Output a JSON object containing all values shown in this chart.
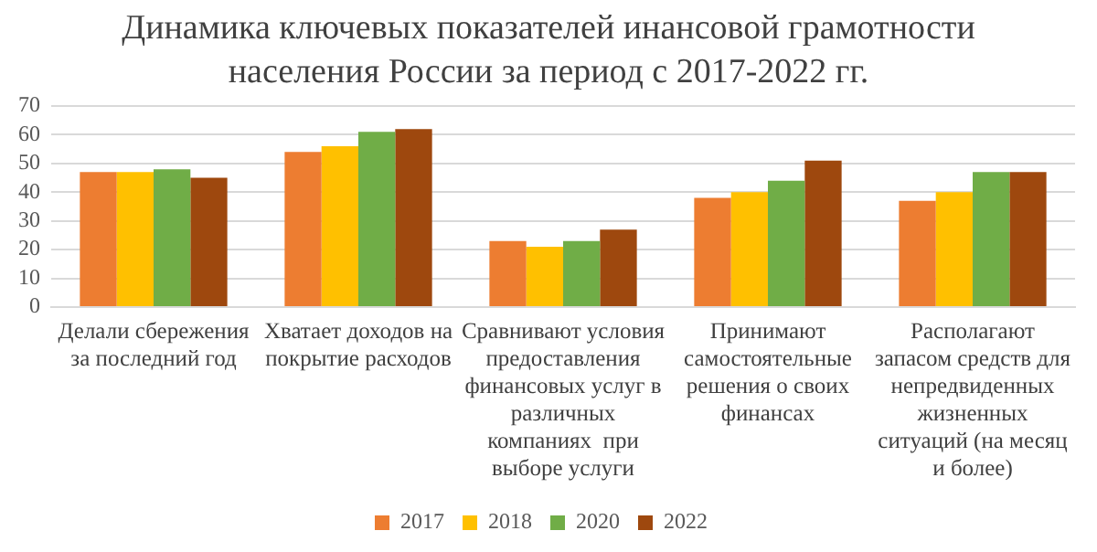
{
  "chart_data": {
    "type": "bar",
    "title": "Динамика ключевых показателей инансовой грамотности населения России за период с 2017-2022  гг.",
    "categories": [
      "Делали сбережения за последний год",
      "Хватает доходов на покрытие расходов",
      "Сравнивают условия предоставления финансовых услуг в различных компаниях  при выборе услуги",
      "Принимают самостоятельные решения о своих финансах",
      "Располагают запасом средств для непредвиденных жизненных ситуаций (на месяц и более)"
    ],
    "series": [
      {
        "name": "2017",
        "color": "#ed7d31",
        "values": [
          47,
          54,
          23,
          38,
          37
        ]
      },
      {
        "name": "2018",
        "color": "#ffc000",
        "values": [
          47,
          56,
          21,
          40,
          40
        ]
      },
      {
        "name": "2020",
        "color": "#70ad47",
        "values": [
          48,
          61,
          23,
          44,
          47
        ]
      },
      {
        "name": "2022",
        "color": "#9e480e",
        "values": [
          45,
          62,
          27,
          51,
          47
        ]
      }
    ],
    "ylim": [
      0,
      70
    ],
    "yticks": [
      0,
      10,
      20,
      30,
      40,
      50,
      60,
      70
    ],
    "grid": "y",
    "legend": "bottom"
  }
}
